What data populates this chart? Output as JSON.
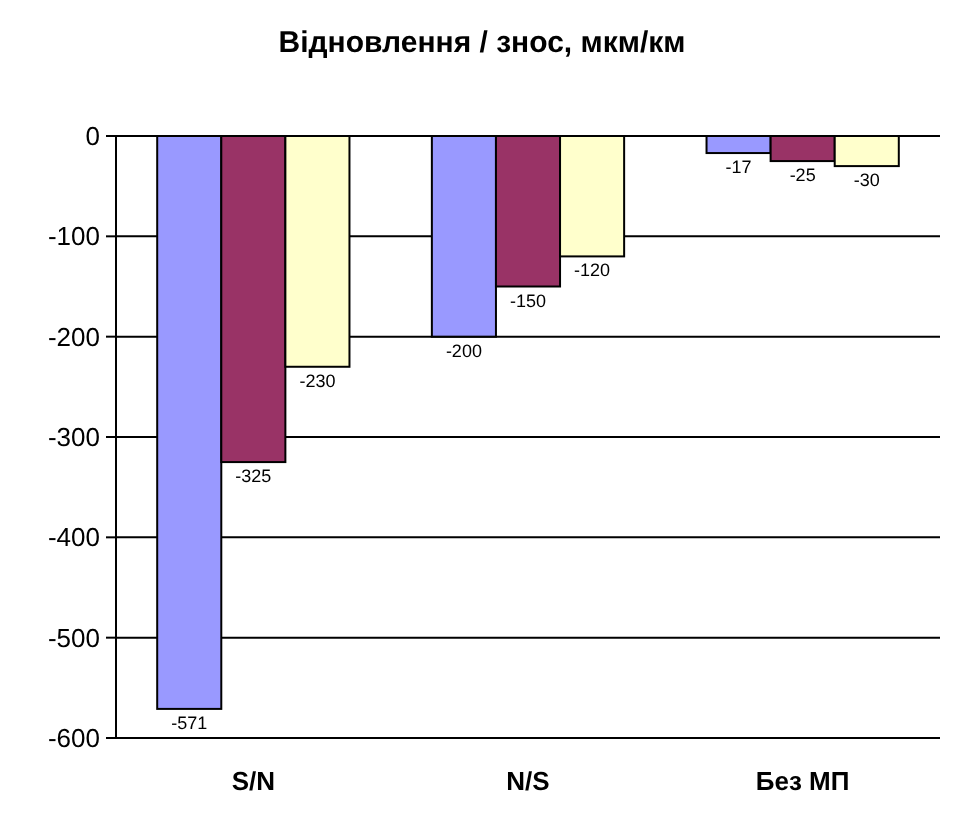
{
  "chart_data": {
    "type": "bar",
    "title": "Відновлення / знос, мкм/км",
    "categories": [
      "S/N",
      "N/S",
      "Без МП"
    ],
    "series": [
      {
        "color": "#9999ff",
        "values": [
          -571,
          -200,
          -17
        ]
      },
      {
        "color": "#993366",
        "values": [
          -325,
          -150,
          -25
        ]
      },
      {
        "color": "#ffffcc",
        "values": [
          -230,
          -120,
          -30
        ]
      }
    ],
    "ylim": [
      -600,
      0
    ],
    "yticks": [
      -600,
      -500,
      -400,
      -300,
      -200,
      -100,
      0
    ],
    "grid": "y",
    "data_labels": true
  }
}
